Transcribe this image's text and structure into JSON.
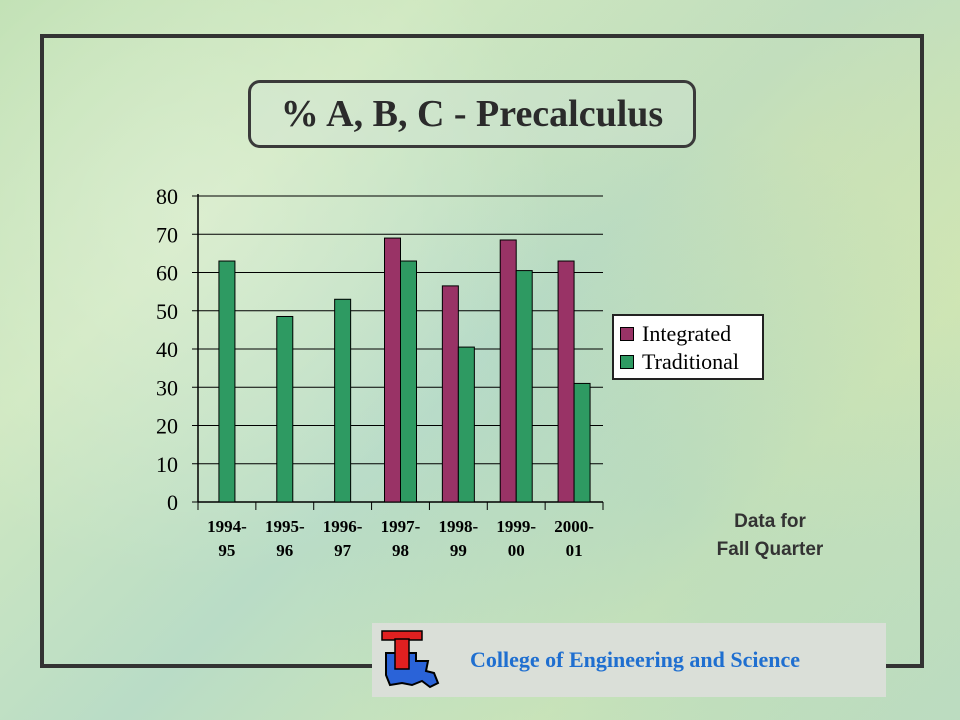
{
  "chart_data": {
    "type": "bar",
    "title": "% A, B, C - Precalculus",
    "categories": [
      "1994-95",
      "1995-96",
      "1996-97",
      "1997-98",
      "1998-99",
      "1999-00",
      "2000-01"
    ],
    "category_lines": [
      [
        "1994-",
        "95"
      ],
      [
        "1995-",
        "96"
      ],
      [
        "1996-",
        "97"
      ],
      [
        "1997-",
        "98"
      ],
      [
        "1998-",
        "99"
      ],
      [
        "1999-",
        "00"
      ],
      [
        "2000-",
        "01"
      ]
    ],
    "series": [
      {
        "name": "Integrated",
        "color": "#993366",
        "values": [
          null,
          null,
          null,
          69,
          56.5,
          68.5,
          63
        ]
      },
      {
        "name": "Traditional",
        "color": "#2e9a62",
        "values": [
          63,
          48.5,
          53,
          63,
          40.5,
          60.5,
          31
        ]
      }
    ],
    "ylim": [
      0,
      80
    ],
    "yticks": [
      "0",
      "10",
      "20",
      "30",
      "40",
      "50",
      "60",
      "70",
      "80"
    ],
    "grid": true,
    "legend_position": "right"
  },
  "note": {
    "line1": "Data for",
    "line2": "Fall Quarter"
  },
  "footer": {
    "college": "College of Engineering and Science",
    "logo_letter": "T"
  }
}
